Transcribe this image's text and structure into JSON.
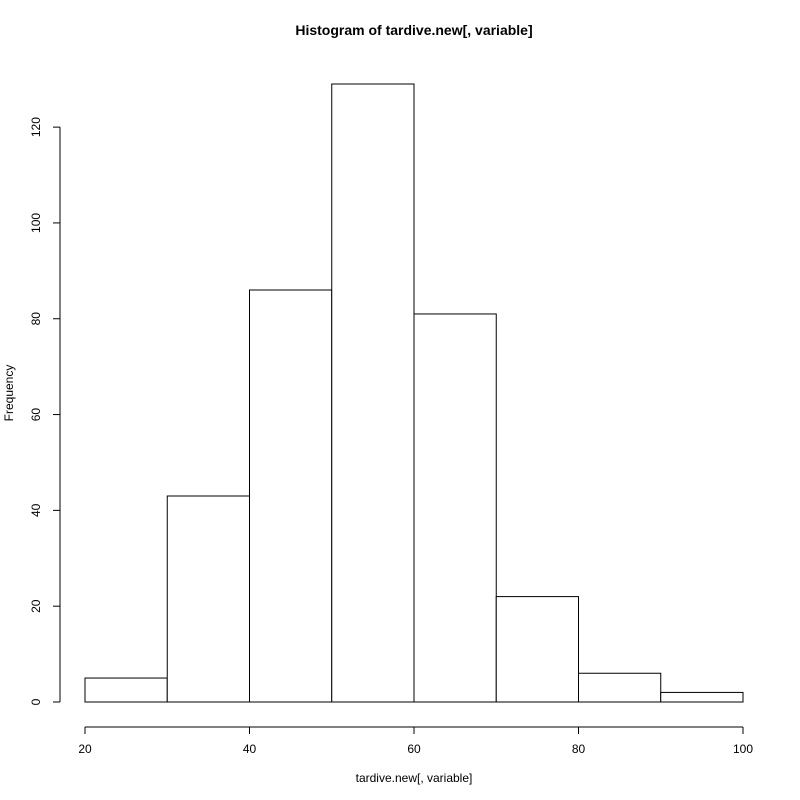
{
  "chart_data": {
    "type": "bar",
    "histogram": true,
    "title": "Histogram of tardive.new[, variable]",
    "xlabel": "tardive.new[, variable]",
    "ylabel": "Frequency",
    "bins": [
      {
        "start": 20,
        "end": 30,
        "value": 5
      },
      {
        "start": 30,
        "end": 40,
        "value": 43
      },
      {
        "start": 40,
        "end": 50,
        "value": 86
      },
      {
        "start": 50,
        "end": 60,
        "value": 129
      },
      {
        "start": 60,
        "end": 70,
        "value": 81
      },
      {
        "start": 70,
        "end": 80,
        "value": 22
      },
      {
        "start": 80,
        "end": 90,
        "value": 6
      },
      {
        "start": 90,
        "end": 100,
        "value": 2
      }
    ],
    "xlim": [
      20,
      100
    ],
    "ylim": [
      0,
      129
    ],
    "x_ticks": [
      20,
      40,
      60,
      80,
      100
    ],
    "y_ticks": [
      0,
      20,
      40,
      60,
      80,
      100,
      120
    ],
    "grid": false,
    "legend": "none",
    "bar_fill": "#ffffff",
    "bar_stroke": "#000000"
  }
}
